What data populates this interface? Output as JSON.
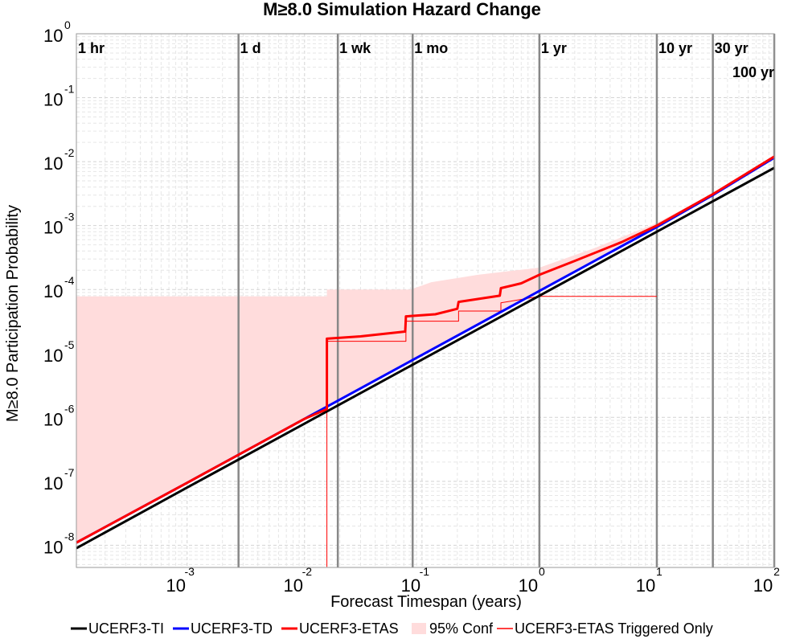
{
  "chart_data": {
    "type": "line",
    "title": "M≥8.0 Simulation Hazard Change",
    "xlabel": "Forecast Timespan (years)",
    "ylabel": "M≥8.0 Participation Probability",
    "x_scale": "log",
    "y_scale": "log",
    "xlim": [
      0.000114,
      100
    ],
    "ylim": [
      4.5e-09,
      1
    ],
    "grid": true,
    "legend_position": "bottom",
    "x_ticks": [
      {
        "base": "10",
        "exp": "-3",
        "value": 0.001
      },
      {
        "base": "10",
        "exp": "-2",
        "value": 0.01
      },
      {
        "base": "10",
        "exp": "-1",
        "value": 0.1
      },
      {
        "base": "10",
        "exp": "0",
        "value": 1
      },
      {
        "base": "10",
        "exp": "1",
        "value": 10
      },
      {
        "base": "10",
        "exp": "2",
        "value": 100
      }
    ],
    "y_ticks": [
      {
        "base": "10",
        "exp": "0",
        "value": 1
      },
      {
        "base": "10",
        "exp": "-1",
        "value": 0.1
      },
      {
        "base": "10",
        "exp": "-2",
        "value": 0.01
      },
      {
        "base": "10",
        "exp": "-3",
        "value": 0.001
      },
      {
        "base": "10",
        "exp": "-4",
        "value": 0.0001
      },
      {
        "base": "10",
        "exp": "-5",
        "value": 1e-05
      },
      {
        "base": "10",
        "exp": "-6",
        "value": 1e-06
      },
      {
        "base": "10",
        "exp": "-7",
        "value": 1e-07
      },
      {
        "base": "10",
        "exp": "-8",
        "value": 1e-08
      }
    ],
    "annotations": [
      {
        "label": "1 hr",
        "x": 0.000114
      },
      {
        "label": "1 d",
        "x": 0.00274
      },
      {
        "label": "1 wk",
        "x": 0.0192
      },
      {
        "label": "1 mo",
        "x": 0.0833
      },
      {
        "label": "1 yr",
        "x": 1
      },
      {
        "label": "10 yr",
        "x": 10
      },
      {
        "label": "30 yr",
        "x": 30
      },
      {
        "label": "100 yr",
        "x": 100
      }
    ],
    "series": [
      {
        "name": "UCERF3-TI",
        "color": "#000000",
        "style": "line",
        "points": [
          [
            0.000114,
            9e-09
          ],
          [
            0.001,
            8e-08
          ],
          [
            0.01,
            8e-07
          ],
          [
            0.1,
            8e-06
          ],
          [
            1,
            8e-05
          ],
          [
            10,
            0.0008
          ],
          [
            100,
            0.008
          ]
        ]
      },
      {
        "name": "UCERF3-TD",
        "color": "#0000ff",
        "style": "line",
        "points": [
          [
            0.000114,
            1.1e-08
          ],
          [
            0.001,
            9.5e-08
          ],
          [
            0.01,
            9.5e-07
          ],
          [
            0.1,
            9.5e-06
          ],
          [
            1,
            9.5e-05
          ],
          [
            10,
            0.00095
          ],
          [
            30,
            0.003
          ],
          [
            100,
            0.0115
          ]
        ]
      },
      {
        "name": "UCERF3-ETAS",
        "color": "#ff0000",
        "style": "line",
        "points": [
          [
            0.000114,
            1.1e-08
          ],
          [
            0.001,
            9.5e-08
          ],
          [
            0.01,
            9.5e-07
          ],
          [
            0.0155,
            1.35e-06
          ],
          [
            0.0155,
            1.7e-05
          ],
          [
            0.03,
            1.85e-05
          ],
          [
            0.072,
            2.2e-05
          ],
          [
            0.073,
            3.8e-05
          ],
          [
            0.13,
            4.1e-05
          ],
          [
            0.2,
            5e-05
          ],
          [
            0.205,
            6.4e-05
          ],
          [
            0.46,
            8e-05
          ],
          [
            0.47,
            0.000105
          ],
          [
            0.7,
            0.000125
          ],
          [
            1,
            0.00017
          ],
          [
            2,
            0.00028
          ],
          [
            5,
            0.00055
          ],
          [
            10,
            0.001
          ],
          [
            30,
            0.0031
          ],
          [
            100,
            0.012
          ]
        ]
      },
      {
        "name": "95% Conf",
        "color": "#ffdcdc",
        "style": "band",
        "upper": [
          [
            0.000114,
            7.8e-05
          ],
          [
            0.0155,
            7.8e-05
          ],
          [
            0.0155,
            0.0001
          ],
          [
            0.08,
            0.0001
          ],
          [
            0.12,
            0.00013
          ],
          [
            0.3,
            0.00017
          ],
          [
            1,
            0.00022
          ],
          [
            3,
            0.00045
          ],
          [
            10,
            0.0011
          ],
          [
            30,
            0.0032
          ],
          [
            100,
            0.0123
          ]
        ],
        "lower": [
          [
            0.000114,
            1.05e-08
          ],
          [
            0.01,
            9e-07
          ],
          [
            0.02,
            1.8e-06
          ],
          [
            0.1,
            9e-06
          ],
          [
            1,
            9e-05
          ],
          [
            10,
            0.00095
          ],
          [
            30,
            0.0029
          ],
          [
            100,
            0.0115
          ]
        ]
      },
      {
        "name": "UCERF3-ETAS Triggered Only",
        "color": "#ff0000",
        "style": "thin-step",
        "points": [
          [
            0.0155,
            4.6e-09
          ],
          [
            0.0155,
            1.55e-05
          ],
          [
            0.073,
            1.55e-05
          ],
          [
            0.073,
            3.2e-05
          ],
          [
            0.205,
            3.2e-05
          ],
          [
            0.205,
            4.6e-05
          ],
          [
            0.47,
            4.6e-05
          ],
          [
            0.47,
            6.2e-05
          ],
          [
            1,
            7.8e-05
          ],
          [
            10,
            7.8e-05
          ]
        ]
      }
    ]
  }
}
